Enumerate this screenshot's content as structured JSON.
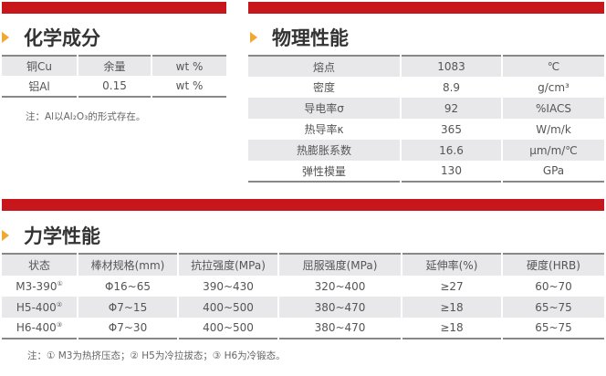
{
  "chem": {
    "title": "化学成分",
    "rows": [
      [
        "铜Cu",
        "余量",
        "wt %"
      ],
      [
        "铝Al",
        "0.15",
        "wt %"
      ]
    ],
    "note": "注：Al以Al₂O₃的形式存在。"
  },
  "phys": {
    "title": "物理性能",
    "rows": [
      [
        "熔点",
        "1083",
        "℃"
      ],
      [
        "密度",
        "8.9",
        "g/cm³"
      ],
      [
        "导电率σ",
        "92",
        "%IACS"
      ],
      [
        "热导率κ",
        "365",
        "W/m/k"
      ],
      [
        "热膨胀系数",
        "16.6",
        "μm/m/℃"
      ],
      [
        "弹性模量",
        "130",
        "GPa"
      ]
    ]
  },
  "mech": {
    "title": "力学性能",
    "headers": [
      "状态",
      "棒材规格(mm)",
      "抗拉强度(MPa)",
      "屈服强度(MPa)",
      "延伸率(%)",
      "硬度(HRB)"
    ],
    "rows": [
      [
        "M3-390",
        "①",
        "Φ16~65",
        "390~430",
        "320~400",
        "≥27",
        "60~70"
      ],
      [
        "H5-400",
        "②",
        "Φ7~15",
        "400~500",
        "380~470",
        "≥18",
        "65~75"
      ],
      [
        "H6-400",
        "③",
        "Φ7~30",
        "400~500",
        "380~470",
        "≥18",
        "65~75"
      ]
    ],
    "note": "注：① M3为热挤压态；② H5为冷拉拔态；③ H6为冷锻态。"
  },
  "colors": {
    "accent": "#c8161d",
    "marker": "#f0a830"
  }
}
